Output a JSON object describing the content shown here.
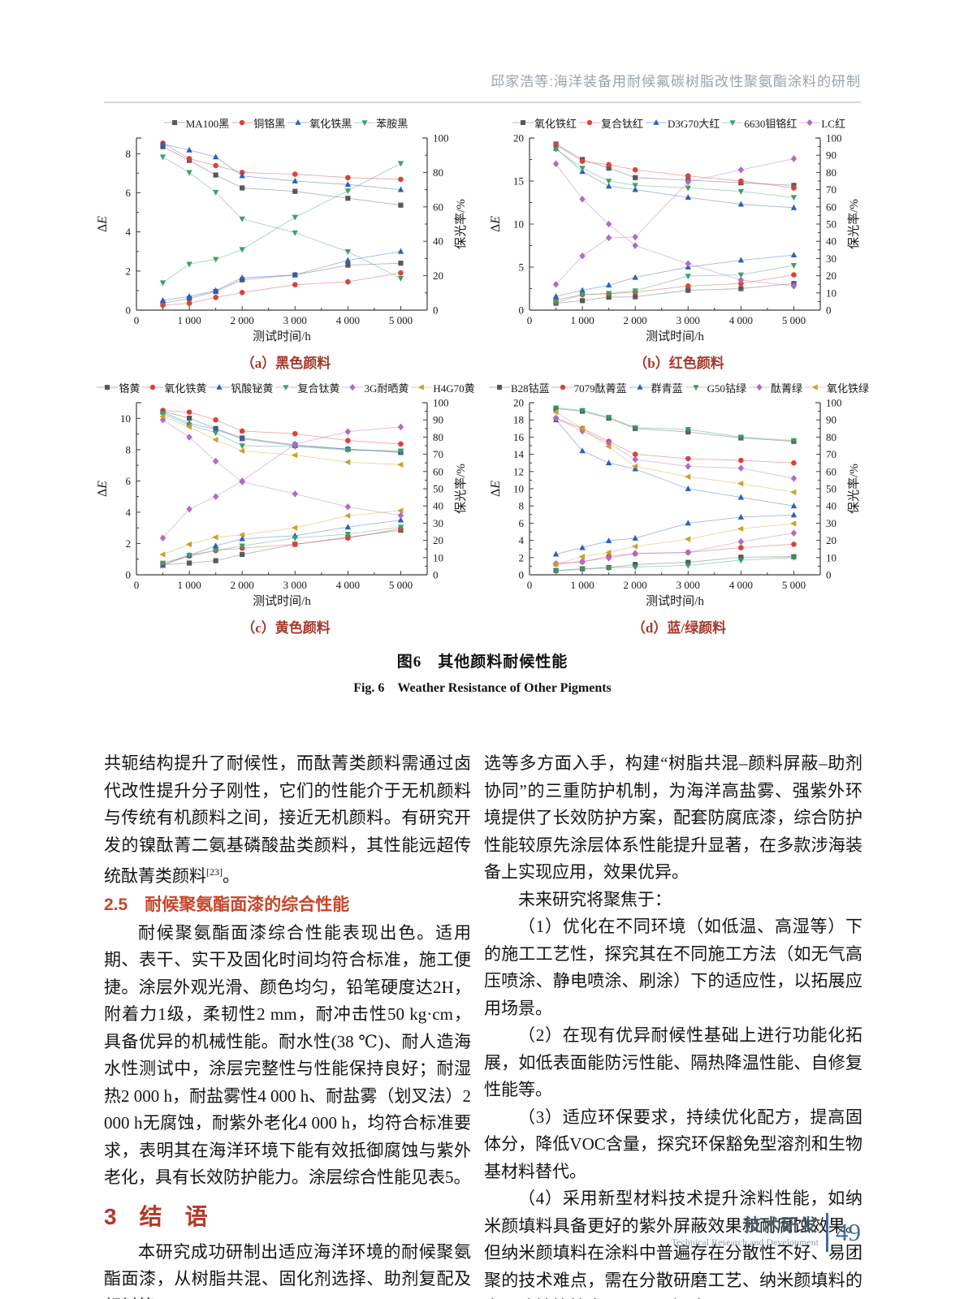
{
  "header": {
    "running_title": "邱家浩等:海洋装备用耐候氟碳树脂改性聚氨酯涂料的研制"
  },
  "figure": {
    "caption_cn": "图6　其他颜料耐候性能",
    "caption_en": "Fig. 6　Weather Resistance of Other Pigments"
  },
  "chart_data": [
    {
      "id": "a",
      "type": "line",
      "caption": "（a）黑色颜料",
      "xlabel": "测试时间/h",
      "ylabel_left": "ΔE",
      "ylabel_right": "保光率/%",
      "x": [
        500,
        1000,
        1500,
        2000,
        3000,
        4000,
        5000
      ],
      "x_max": 5500,
      "x_ticks": [
        0,
        1000,
        2000,
        3000,
        4000,
        5000
      ],
      "x_tick_labels": [
        "0",
        "1 000",
        "2 000",
        "3 000",
        "4 000",
        "5 000"
      ],
      "left_ticks": [
        0,
        2,
        4,
        6,
        8
      ],
      "left_max": 8.8,
      "right_ticks": [
        0,
        20,
        40,
        60,
        80,
        100
      ],
      "right_max": 100,
      "series": [
        {
          "name": "MA100黑",
          "marker": "square",
          "color": "#595959",
          "delta_e": [
            0.35,
            0.6,
            0.95,
            1.55,
            1.8,
            2.3,
            2.4
          ],
          "gloss": [
            95,
            87,
            78.5,
            71,
            69,
            65,
            61
          ]
        },
        {
          "name": "铜铬黑",
          "marker": "circle",
          "color": "#d9433a",
          "delta_e": [
            0.25,
            0.35,
            0.65,
            0.9,
            1.3,
            1.45,
            1.9
          ],
          "gloss": [
            97,
            88,
            84,
            80,
            79,
            77,
            76
          ]
        },
        {
          "name": "氧化铁黑",
          "marker": "triangle-up",
          "color": "#2b5fc0",
          "delta_e": [
            0.5,
            0.7,
            1.0,
            1.65,
            1.8,
            2.55,
            3.0
          ],
          "gloss": [
            96.5,
            93,
            89,
            78,
            75,
            73,
            70
          ]
        },
        {
          "name": "苯胺黑",
          "marker": "triangle-down",
          "color": "#3da06a",
          "delta_e": [
            1.4,
            2.35,
            2.6,
            3.1,
            4.75,
            6.1,
            7.5
          ],
          "gloss": [
            89,
            80,
            68.5,
            53,
            45,
            34,
            18.5
          ]
        }
      ]
    },
    {
      "id": "b",
      "type": "line",
      "caption": "（b）红色颜料",
      "xlabel": "测试时间/h",
      "ylabel_left": "ΔE",
      "ylabel_right": "保光率/%",
      "x": [
        500,
        1000,
        1500,
        2000,
        3000,
        4000,
        5000
      ],
      "x_max": 5500,
      "x_ticks": [
        0,
        1000,
        2000,
        3000,
        4000,
        5000
      ],
      "x_tick_labels": [
        "0",
        "1 000",
        "2 000",
        "3 000",
        "4 000",
        "5 000"
      ],
      "left_ticks": [
        0,
        5,
        10,
        15,
        20
      ],
      "left_max": 20,
      "right_ticks": [
        0,
        10,
        20,
        30,
        40,
        50,
        60,
        70,
        80,
        90,
        100
      ],
      "right_max": 100,
      "series": [
        {
          "name": "氧化铁红",
          "marker": "square",
          "color": "#595959",
          "delta_e": [
            0.8,
            1.1,
            1.5,
            1.55,
            2.3,
            2.5,
            3.1
          ],
          "gloss": [
            96.5,
            87.5,
            82.5,
            77,
            75.5,
            74,
            72.5
          ]
        },
        {
          "name": "复合钛红",
          "marker": "circle",
          "color": "#d9433a",
          "delta_e": [
            1.2,
            1.8,
            1.9,
            2.1,
            2.8,
            3.1,
            4.1
          ],
          "gloss": [
            96,
            86.5,
            84.5,
            81.5,
            78,
            75,
            71
          ]
        },
        {
          "name": "D3G70大红",
          "marker": "triangle-up",
          "color": "#2b5fc0",
          "delta_e": [
            1.6,
            2.3,
            2.9,
            3.8,
            5.0,
            5.8,
            6.4
          ],
          "gloss": [
            94,
            80.5,
            72,
            70,
            65.5,
            61.5,
            59.5
          ]
        },
        {
          "name": "6630钼铬红",
          "marker": "triangle-down",
          "color": "#3da06a",
          "delta_e": [
            0.9,
            1.8,
            1.95,
            2.25,
            3.95,
            4.1,
            5.2
          ],
          "gloss": [
            93.5,
            82.5,
            75,
            72.5,
            71,
            69,
            65.5
          ]
        },
        {
          "name": "LC红",
          "marker": "diamond",
          "color": "#af6bc8",
          "delta_e": [
            3.0,
            6.3,
            8.4,
            8.5,
            14.9,
            16.3,
            17.6
          ],
          "gloss": [
            85,
            64.5,
            50,
            37.5,
            27,
            17.5,
            14
          ]
        }
      ]
    },
    {
      "id": "c",
      "type": "line",
      "caption": "（c）黄色颜料",
      "xlabel": "测试时间/h",
      "ylabel_left": "ΔE",
      "ylabel_right": "保光率/%",
      "x": [
        500,
        1000,
        1500,
        2000,
        3000,
        4000,
        5000
      ],
      "x_max": 5500,
      "x_ticks": [
        0,
        1000,
        2000,
        3000,
        4000,
        5000
      ],
      "x_tick_labels": [
        "0",
        "1 000",
        "2 000",
        "3 000",
        "4 000",
        "5 000"
      ],
      "left_ticks": [
        0,
        2,
        4,
        6,
        8,
        10
      ],
      "left_max": 11,
      "right_ticks": [
        0,
        10,
        20,
        30,
        40,
        50,
        60,
        70,
        80,
        90,
        100
      ],
      "right_max": 100,
      "series": [
        {
          "name": "铬黄",
          "marker": "square",
          "color": "#595959",
          "delta_e": [
            0.65,
            0.75,
            0.9,
            1.3,
            1.95,
            2.4,
            2.85
          ],
          "gloss": [
            95,
            91,
            85,
            79.5,
            75.5,
            73,
            71.5
          ]
        },
        {
          "name": "氧化铁黄",
          "marker": "circle",
          "color": "#d9433a",
          "delta_e": [
            0.7,
            1.2,
            1.55,
            1.7,
            1.95,
            2.35,
            2.95
          ],
          "gloss": [
            95.5,
            94.5,
            90,
            83.5,
            82,
            78,
            76
          ]
        },
        {
          "name": "钒酸铋黄",
          "marker": "triangle-up",
          "color": "#2b5fc0",
          "delta_e": [
            0.6,
            1.25,
            1.85,
            2.3,
            2.5,
            3.05,
            3.5
          ],
          "gloss": [
            94.5,
            88,
            84.5,
            79,
            75,
            73,
            71
          ]
        },
        {
          "name": "复合钛黄",
          "marker": "triangle-down",
          "color": "#3da06a",
          "delta_e": [
            0.75,
            1.25,
            1.55,
            1.85,
            2.35,
            2.6,
            3.05
          ],
          "gloss": [
            93.5,
            87,
            82.5,
            75,
            74.5,
            72.5,
            72
          ]
        },
        {
          "name": "3G耐晒黄",
          "marker": "diamond",
          "color": "#af6bc8",
          "delta_e": [
            2.35,
            4.2,
            5.0,
            6.0,
            8.35,
            9.15,
            9.45
          ],
          "gloss": [
            90,
            80,
            66,
            54,
            47,
            39.5,
            34.5
          ]
        },
        {
          "name": "H4G70黄",
          "marker": "triangle-left",
          "color": "#c9a227",
          "delta_e": [
            1.3,
            1.95,
            2.4,
            2.55,
            3.0,
            3.78,
            4.1
          ],
          "gloss": [
            92,
            86,
            78.5,
            72,
            69.5,
            65.5,
            64
          ]
        }
      ]
    },
    {
      "id": "d",
      "type": "line",
      "caption": "（d）蓝/绿颜料",
      "xlabel": "测试时间/h",
      "ylabel_left": "ΔE",
      "ylabel_right": "保光率/%",
      "x": [
        500,
        1000,
        1500,
        2000,
        3000,
        4000,
        5000
      ],
      "x_max": 5500,
      "x_ticks": [
        0,
        1000,
        2000,
        3000,
        4000,
        5000
      ],
      "x_tick_labels": [
        "0",
        "1 000",
        "2 000",
        "3 000",
        "4 000",
        "5 000"
      ],
      "left_ticks": [
        0,
        2,
        4,
        6,
        8,
        10,
        12,
        14,
        16,
        18,
        20
      ],
      "left_max": 20,
      "right_ticks": [
        0,
        10,
        20,
        30,
        40,
        50,
        60,
        70,
        80,
        90,
        100
      ],
      "right_max": 100,
      "series": [
        {
          "name": "B28钴蓝",
          "marker": "square",
          "color": "#595959",
          "delta_e": [
            0.5,
            0.7,
            0.85,
            1.2,
            1.45,
            2.05,
            2.1
          ],
          "gloss": [
            96.5,
            95,
            91,
            85,
            83,
            79.5,
            77.5
          ]
        },
        {
          "name": "7079酞菁蓝",
          "marker": "circle",
          "color": "#d9433a",
          "delta_e": [
            1.25,
            1.5,
            2.15,
            2.45,
            2.6,
            3.15,
            3.55
          ],
          "gloss": [
            91,
            85,
            77.5,
            70,
            67.5,
            66.5,
            65
          ]
        },
        {
          "name": "群青蓝",
          "marker": "triangle-up",
          "color": "#2b5fc0",
          "delta_e": [
            2.4,
            3.15,
            3.95,
            4.25,
            6.0,
            6.7,
            6.95
          ],
          "gloss": [
            90,
            72,
            65,
            61.5,
            50,
            45,
            40
          ]
        },
        {
          "name": "G50钴绿",
          "marker": "triangle-down",
          "color": "#2f9e60",
          "delta_e": [
            0.45,
            0.65,
            0.8,
            0.9,
            1.1,
            1.7,
            2.0
          ],
          "gloss": [
            97,
            95.5,
            91.5,
            85.5,
            84.5,
            80,
            78
          ]
        },
        {
          "name": "酞菁绿",
          "marker": "diamond",
          "color": "#af6bc8",
          "delta_e": [
            1.3,
            1.55,
            1.95,
            2.5,
            2.6,
            3.85,
            4.85
          ],
          "gloss": [
            91,
            83.5,
            76.5,
            67,
            63,
            62,
            56
          ]
        },
        {
          "name": "氧化铁绿",
          "marker": "triangle-left",
          "color": "#c9a227",
          "delta_e": [
            1.25,
            2.1,
            2.6,
            3.3,
            4.15,
            5.35,
            5.95
          ],
          "gloss": [
            94.5,
            85,
            74.5,
            63,
            57,
            53,
            48
          ]
        }
      ]
    }
  ],
  "body": {
    "left": {
      "p1_main": "共轭结构提升了耐候性，而酞菁类颜料需通过卤代改性提升分子刚性，它们的性能介于无机颜料与传统有机颜料之间，接近无机颜料。有研究开发的镍酞菁二氨基磷酸盐类颜料，其性能远超传统酞菁类颜料",
      "p1_ref": "[23]",
      "p1_end": "。",
      "h25": "2.5　耐候聚氨酯面漆的综合性能",
      "p2": "耐候聚氨酯面漆综合性能表现出色。适用期、表干、实干及固化时间均符合标准，施工便捷。涂层外观光滑、颜色均匀，铅笔硬度达2H，附着力1级，柔韧性2 mm，耐冲击性50 kg·cm，具备优异的机械性能。耐水性(38 ℃)、耐人造海水性测试中，涂层完整性与性能保持良好；耐湿热2 000 h，耐盐雾性4 000 h、耐盐雾（划叉法）2 000 h无腐蚀，耐紫外老化4 000 h，均符合标准要求，表明其在海洋环境下能有效抵御腐蚀与紫外老化，具有长效防护能力。涂层综合性能见表5。",
      "h3": "3　结　语",
      "p3": "本研究成功研制出适应海洋环境的耐候聚氨酯面漆，从树脂共混、固化剂选择、助剂复配及颜料筛"
    },
    "right": {
      "p1": "选等多方面入手，构建“树脂共混–颜料屏蔽–助剂协同”的三重防护机制，为海洋高盐雾、强紫外环境提供了长效防护方案，配套防腐底漆，综合防护性能较原先涂层体系性能提升显著，在多款涉海装备上实现应用，效果优异。",
      "p2": "未来研究将聚焦于：",
      "p3": "（1）优化在不同环境（如低温、高湿等）下的施工工艺性，探究其在不同施工方法（如无气高压喷涂、静电喷涂、刷涂）下的适应性，以拓展应用场景。",
      "p4": "（2）在现有优异耐候性基础上进行功能化拓展，如低表面能防污性能、隔热降温性能、自修复性能等。",
      "p5": "（3）适应环保要求，持续优化配方，提高固体分，降低VOC含量，探究环保豁免型溶剂和生物基材料替代。",
      "p6": "（4）采用新型材料技术提升涂料性能，如纳米颜填料具备更好的紫外屏蔽效果和耐腐蚀效果。但纳米颜填料在涂料中普遍存在分散性不好、易团聚的技术难点，需在分散研磨工艺、纳米颜填料的表面改性等技术层面予以解决。"
    }
  },
  "footer": {
    "section_cn": "技术研发",
    "section_en": "Technical Research and Development",
    "page_number": "49"
  },
  "colors": {
    "accent_red_heading": "#c6462a",
    "caption_red": "#a5392b",
    "footer_blue": "#3d6da3"
  }
}
